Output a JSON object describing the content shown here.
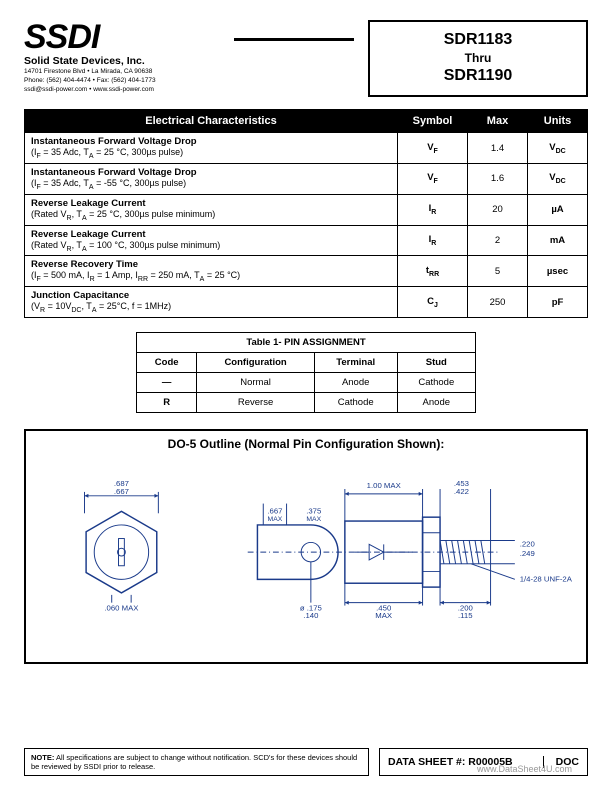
{
  "header": {
    "logo_text": "SSDI",
    "company": "Solid State Devices, Inc.",
    "addr_line1": "14701 Firestone Blvd • La Mirada, CA 90638",
    "addr_line2": "Phone: (562) 404-4474 • Fax: (562) 404-1773",
    "addr_line3": "ssdi@ssdi-power.com • www.ssdi-power.com",
    "part_top": "SDR1183",
    "part_mid": "Thru",
    "part_bot": "SDR1190"
  },
  "ec_table": {
    "headers": {
      "main": "Electrical Characteristics",
      "symbol": "Symbol",
      "max": "Max",
      "units": "Units"
    },
    "rows": [
      {
        "label": "Instantaneous Forward Voltage Drop",
        "cond": "(I_F = 35 Adc, T_A = 25 °C, 300µs pulse)",
        "symbol": "V_F",
        "max": "1.4",
        "units": "V_DC"
      },
      {
        "label": "Instantaneous Forward Voltage Drop",
        "cond": "(I_F = 35 Adc, T_A = -55 °C, 300µs pulse)",
        "symbol": "V_F",
        "max": "1.6",
        "units": "V_DC"
      },
      {
        "label": "Reverse Leakage Current",
        "cond": "(Rated V_R, T_A = 25 °C, 300µs pulse minimum)",
        "symbol": "I_R",
        "max": "20",
        "units": "µA"
      },
      {
        "label": "Reverse Leakage Current",
        "cond": "(Rated V_R, T_A = 100 °C, 300µs pulse minimum)",
        "symbol": "I_R",
        "max": "2",
        "units": "mA"
      },
      {
        "label": "Reverse Recovery Time",
        "cond": "(I_F = 500 mA, I_R = 1 Amp, I_RR = 250 mA, T_A = 25 °C)",
        "symbol": "t_RR",
        "max": "5",
        "units": "µsec"
      },
      {
        "label": "Junction Capacitance",
        "cond": "(V_R = 10V_DC, T_A = 25°C, f = 1MHz)",
        "symbol": "C_J",
        "max": "250",
        "units": "pF"
      }
    ]
  },
  "pin_table": {
    "title": "Table 1- PIN ASSIGNMENT",
    "headers": {
      "code": "Code",
      "config": "Configuration",
      "terminal": "Terminal",
      "stud": "Stud"
    },
    "rows": [
      {
        "code": "—",
        "config": "Normal",
        "terminal": "Anode",
        "stud": "Cathode"
      },
      {
        "code": "R",
        "config": "Reverse",
        "terminal": "Cathode",
        "stud": "Anode"
      }
    ]
  },
  "outline": {
    "title": "DO-5  Outline (Normal Pin Configuration Shown):",
    "dims": {
      "hex_w1": ".687",
      "hex_w2": ".667",
      "runout": ".060 MAX",
      "body_len": "1.00 MAX",
      "lug_h1": ".667",
      "lug_h2": ".375",
      "lug_h1_lab": "MAX",
      "lug_h2_lab": "MAX",
      "hole1": "ø .175",
      "hole2": ".140",
      "base1": ".450",
      "base2": "MAX",
      "tip1": ".453",
      "tip2": ".422",
      "stud_d1": ".220",
      "stud_d2": ".249",
      "thread": "1/4-28 UNF-2A",
      "stud_l1": ".200",
      "stud_l2": ".115"
    },
    "colors": {
      "stroke": "#1a3a8a",
      "fill": "#ffffff",
      "bg": "#ffffff"
    }
  },
  "footer": {
    "note_label": "NOTE:",
    "note_text": "All specifications are subject to change without notification. SCD's for these devices should be reviewed by SSDI prior to release.",
    "datasheet": "DATA SHEET #: R00005B",
    "doc": "DOC",
    "watermark": "www.DataSheet4U.com"
  }
}
